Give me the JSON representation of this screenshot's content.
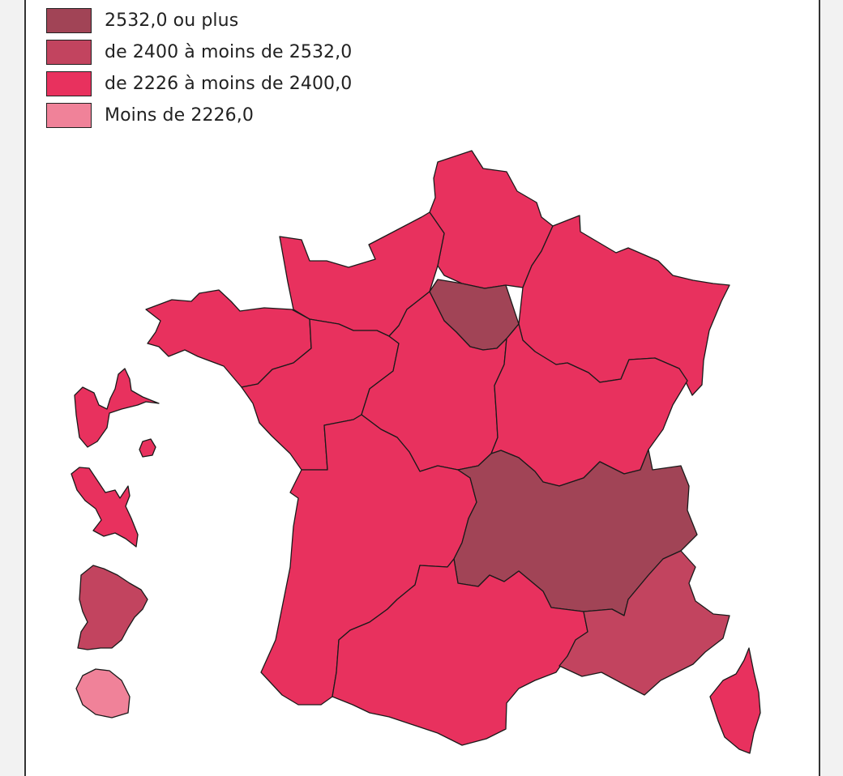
{
  "legend": {
    "items": [
      {
        "label": "2532,0 ou plus",
        "color": "#a14456"
      },
      {
        "label": "de 2400 à moins de 2532,0",
        "color": "#c2445f"
      },
      {
        "label": "de 2226 à moins de 2400,0",
        "color": "#e8315e"
      },
      {
        "label": "Moins de 2226,0",
        "color": "#f08299"
      }
    ]
  },
  "regions": [
    {
      "name": "Hauts-de-France",
      "class": "de 2226 à moins de 2400,0"
    },
    {
      "name": "Normandie",
      "class": "de 2226 à moins de 2400,0"
    },
    {
      "name": "Bretagne",
      "class": "de 2226 à moins de 2400,0"
    },
    {
      "name": "Île-de-France",
      "class": "2532,0 ou plus"
    },
    {
      "name": "Grand Est",
      "class": "de 2226 à moins de 2400,0"
    },
    {
      "name": "Pays de la Loire",
      "class": "de 2226 à moins de 2400,0"
    },
    {
      "name": "Centre-Val de Loire",
      "class": "de 2226 à moins de 2400,0"
    },
    {
      "name": "Bourgogne-Franche-Comté",
      "class": "de 2226 à moins de 2400,0"
    },
    {
      "name": "Nouvelle-Aquitaine",
      "class": "de 2226 à moins de 2400,0"
    },
    {
      "name": "Auvergne-Rhône-Alpes",
      "class": "2532,0 ou plus"
    },
    {
      "name": "Occitanie",
      "class": "de 2226 à moins de 2400,0"
    },
    {
      "name": "Provence-Alpes-Côte d'Azur",
      "class": "de 2400 à moins de 2532,0"
    },
    {
      "name": "Corse",
      "class": "de 2226 à moins de 2400,0"
    },
    {
      "name": "Guadeloupe",
      "class": "de 2226 à moins de 2400,0"
    },
    {
      "name": "Martinique",
      "class": "de 2226 à moins de 2400,0"
    },
    {
      "name": "Guyane",
      "class": "de 2400 à moins de 2532,0"
    },
    {
      "name": "La Réunion",
      "class": "Moins de 2226,0"
    }
  ]
}
